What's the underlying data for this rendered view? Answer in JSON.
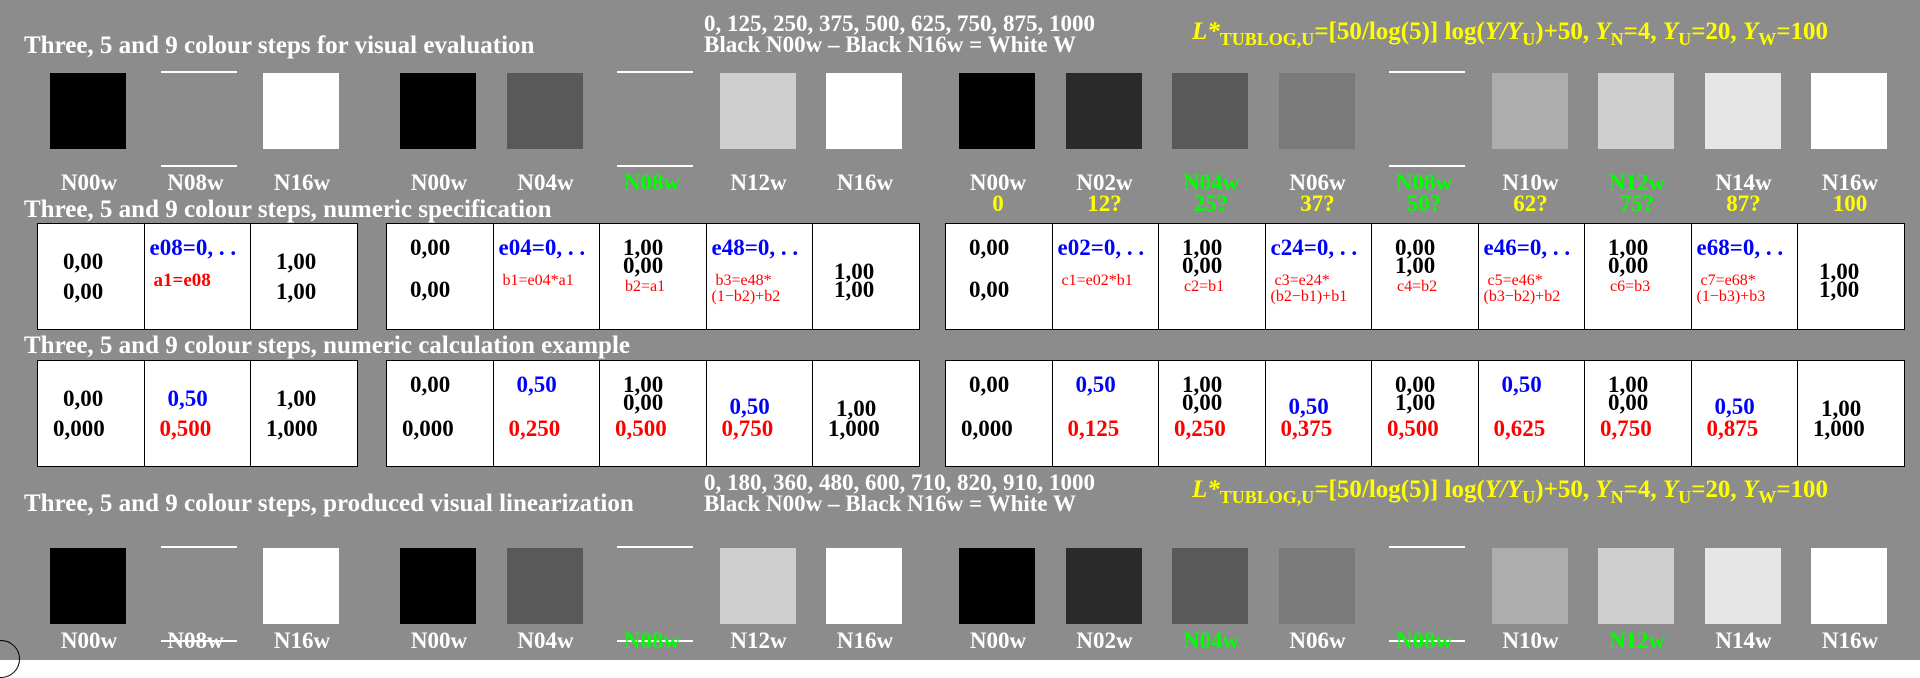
{
  "headings": {
    "visual": "Three, 5 and 9 colour steps for visual evaluation",
    "numeric": "Three, 5 and 9 colour steps, numeric specification",
    "calc": "Three, 5 and 9 colour steps, numeric calculation example",
    "produced": "Three, 5 and 9 colour steps, produced visual linearization"
  },
  "top_codes": {
    "line1": "0, 125, 250, 375, 500, 625, 750, 875, 1000",
    "line2": "Black N00w – Black N16w = White W"
  },
  "bottom_codes": {
    "line1": "0, 180, 360, 480, 600, 710, 820, 910, 1000",
    "line2": "Black N00w – Black N16w = White W"
  },
  "formula": {
    "L": "L*",
    "Lsub": "TUBLOG,U",
    "part1": "=[50/log(5)] log(",
    "Y": "Y",
    "slash": "/",
    "Y2": "Y",
    "U": "U",
    "part2": ")+50, ",
    "YN": "Y",
    "N": "N",
    "p3": "=4, ",
    "YU": "Y",
    "U2": "U",
    "p4": "=20, ",
    "YW": "Y",
    "W": "W",
    "p5": "=100"
  },
  "labels": {
    "three": [
      "N00w",
      "N08w",
      "N16w"
    ],
    "five": [
      "N00w",
      "N04w",
      "N08w",
      "N12w",
      "N16w"
    ],
    "nine": [
      "N00w",
      "N02w",
      "N04w",
      "N06w",
      "N08w",
      "N10w",
      "N12w",
      "N14w",
      "N16w"
    ],
    "nine_values": [
      "0",
      "12?",
      "25?",
      "37?",
      "50?",
      "62?",
      "75?",
      "87?",
      "100"
    ]
  },
  "colors": {
    "background": "#8c8c8c",
    "yellow": "#ffff00",
    "green": "#00ff00",
    "blue": "#0000ff",
    "red": "#ff0000"
  },
  "swatches": {
    "three": [
      "#000000",
      null,
      "#ffffff"
    ],
    "five": [
      "#000000",
      "#595959",
      null,
      "#cfcfcf",
      "#ffffff"
    ],
    "nine": [
      "#000000",
      "#2b2b2b",
      "#595959",
      "#7a7a7a",
      null,
      "#adadad",
      "#cfcfcf",
      "#e6e6e6",
      "#ffffff"
    ]
  },
  "spec": {
    "three": [
      {
        "k1": "0,00",
        "k2": "0,00"
      },
      {
        "b": "e08=0, . .",
        "r": "a1=e08"
      },
      {
        "k1": "1,00",
        "k2": "1,00"
      }
    ],
    "five": [
      {
        "k1": "0,00",
        "k2": "0,00"
      },
      {
        "b": "e04=0, . .",
        "r": "b1=e04*a1"
      },
      {
        "k1": "1,00",
        "k2": "0,00",
        "r": "b2=a1"
      },
      {
        "b": "e48=0, . .",
        "r": "b3=e48*",
        "r2": "(1−b2)+b2"
      },
      {
        "k1": "1,00",
        "k2": "1,00"
      }
    ],
    "nine": [
      {
        "k1": "0,00",
        "k2": "0,00"
      },
      {
        "b": "e02=0, . .",
        "r": "c1=e02*b1"
      },
      {
        "k1": "1,00",
        "k2": "0,00",
        "r": "c2=b1"
      },
      {
        "b": "c24=0, . .",
        "r": "c3=e24*",
        "r2": "(b2−b1)+b1"
      },
      {
        "k1": "0,00",
        "k2": "1,00",
        "r": "c4=b2"
      },
      {
        "b": "e46=0, . .",
        "r": "c5=e46*",
        "r2": "(b3−b2)+b2"
      },
      {
        "k1": "1,00",
        "k2": "0,00",
        "r": "c6=b3"
      },
      {
        "b": "e68=0, . .",
        "r": "c7=e68*",
        "r2": "(1−b3)+b3"
      },
      {
        "k1": "1,00",
        "k2": "1,00"
      }
    ]
  },
  "calc": {
    "three": [
      {
        "k1": "0,00",
        "k2": "0,000"
      },
      {
        "b": "0,50",
        "r": "0,500"
      },
      {
        "k1": "1,00",
        "k2": "1,000"
      }
    ],
    "five": [
      {
        "k1": "0,00",
        "k2": "0,000"
      },
      {
        "b": "0,50",
        "r": "0,250"
      },
      {
        "k1": "1,00",
        "k1b": "0,00",
        "r": "0,500"
      },
      {
        "b": "0,50",
        "r": "0,750"
      },
      {
        "k1": "1,00",
        "k2": "1,000"
      }
    ],
    "nine": [
      {
        "k1": "0,00",
        "k2": "0,000"
      },
      {
        "b": "0,50",
        "r": "0,125"
      },
      {
        "k1": "1,00",
        "k1b": "0,00",
        "r": "0,250"
      },
      {
        "b": "0,50",
        "r": "0,375"
      },
      {
        "k1": "0,00",
        "k1b": "1,00",
        "r": "0,500"
      },
      {
        "b": "0,50",
        "r": "0,625"
      },
      {
        "k1": "1,00",
        "k1b": "0,00",
        "r": "0,750"
      },
      {
        "b": "0,50",
        "r": "0,875"
      },
      {
        "k1": "1,00",
        "k2": "1,000"
      }
    ]
  }
}
